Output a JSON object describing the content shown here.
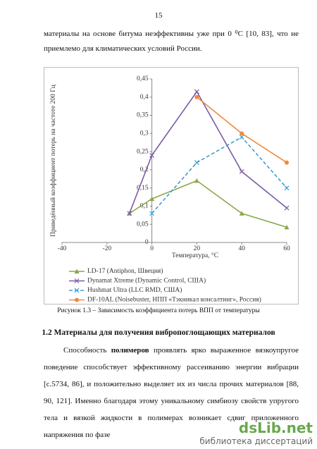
{
  "page_number": "15",
  "intro": "материалы на основе битума неэффективны уже при 0 ⁰C [10, 83], что не приемлемо для климатических условий России.",
  "chart_data": {
    "type": "line",
    "y_label": "Приведённый коэффициент потерь на частоте 200 Гц",
    "x_label": "Температура, °C",
    "x": [
      -10,
      0,
      20,
      40,
      60
    ],
    "xlim": [
      -40,
      60
    ],
    "xticks": [
      -40,
      -20,
      0,
      20,
      40,
      60
    ],
    "ylim": [
      0,
      0.45
    ],
    "yticks": [
      0,
      {
        "value": 0.05,
        "label": "0,05"
      },
      {
        "value": 0.1,
        "label": "0,1"
      },
      {
        "value": 0.15,
        "label": "0,15"
      },
      {
        "value": 0.2,
        "label": "0,2"
      },
      {
        "value": 0.25,
        "label": "0,25"
      },
      {
        "value": 0.3,
        "label": "0,3"
      },
      {
        "value": 0.35,
        "label": "0,35"
      },
      {
        "value": 0.4,
        "label": "0,4"
      },
      {
        "value": 0.45,
        "label": "0,45"
      }
    ],
    "series": [
      {
        "name": "LD-17 (Antiphon, Швеция)",
        "color": "#8aa84a",
        "marker": "triangle",
        "dashed": false,
        "values": [
          0.08,
          0.12,
          0.17,
          0.08,
          0.042
        ]
      },
      {
        "name": "Dynamat Xtreme (Dynamic Control, США)",
        "color": "#7a5aa6",
        "marker": "x",
        "dashed": false,
        "values": [
          0.08,
          0.24,
          0.415,
          0.195,
          0.095
        ]
      },
      {
        "name": "Hushmat Ultra (LLC RMD, США)",
        "color": "#3d9bd6",
        "marker": "x",
        "dashed": true,
        "values": [
          null,
          0.08,
          0.22,
          0.29,
          0.15
        ]
      },
      {
        "name": "DF-10AL (Noisebuster, НПП «Тэкникал консалтинг», Россия)",
        "color": "#ef8a3a",
        "marker": "circle",
        "dashed": false,
        "values": [
          null,
          null,
          0.4,
          0.3,
          0.22
        ]
      }
    ]
  },
  "caption": "Рисунок 1.3 – Зависимость коэффициента потерь ВПП от температуры",
  "heading": "1.2 Материалы для получения вибропоглощающих материалов",
  "body": {
    "before": "Способность ",
    "bold": "полимеров",
    "after": " проявлять ярко выраженное вязкоупругое поведение способствует эффективному рассеиванию энергии вибрации [с.5734, 86], и положительно выделяет их из числа прочих материалов [88, 90, 121]. Именно благодаря этому уникальному симбиозу свойств упругого тела и вязкой жидкости в полимерах возникает сдвиг приложенного напряжения по фазе"
  },
  "watermark": {
    "brand": "dsLib.net",
    "tagline": "библиотека диссертаций"
  }
}
